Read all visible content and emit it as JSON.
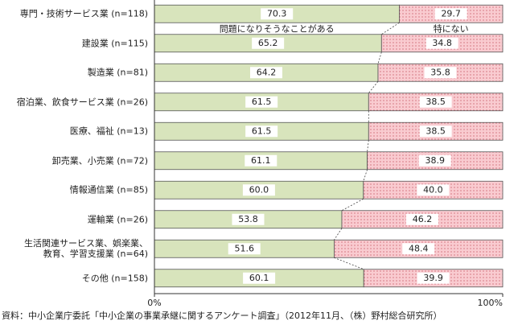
{
  "chart_data": {
    "type": "stacked-bar-horizontal",
    "categories": [
      "専門・技術サービス業 (n=118)",
      "建設業 (n=115)",
      "製造業 (n=81)",
      "宿泊業、飲食サービス業 (n=26)",
      "医療、福祉 (n=13)",
      "卸売業、小売業 (n=72)",
      "情報通信業 (n=85)",
      "運輸業 (n=26)",
      "生活関連サービス業、娯楽業、\n教育、学習支援業 (n=64)",
      "その他 (n=158)"
    ],
    "series": [
      {
        "name": "問題になりそうなことがある",
        "color": "#d8e4bc",
        "values": [
          70.3,
          65.2,
          64.2,
          61.5,
          61.5,
          61.1,
          60.0,
          53.8,
          51.6,
          60.1
        ],
        "value_labels": [
          "70.3",
          "65.2",
          "64.2",
          "61.5",
          "61.5",
          "61.1",
          "60.0",
          "53.8",
          "51.6",
          "60.1"
        ]
      },
      {
        "name": "特にない",
        "color": "#f9cbd0",
        "values": [
          29.7,
          34.8,
          35.8,
          38.5,
          38.5,
          38.9,
          40.0,
          46.2,
          48.4,
          39.9
        ],
        "value_labels": [
          "29.7",
          "34.8",
          "35.8",
          "38.5",
          "38.5",
          "38.9",
          "40.0",
          "46.2",
          "48.4",
          "39.9"
        ]
      }
    ],
    "xlim": [
      0,
      100
    ],
    "xticks": [
      {
        "value": 0,
        "label": "0%"
      },
      {
        "value": 100,
        "label": "100%"
      }
    ],
    "source": "資料：中小企業庁委託「中小企業の事業承継に関するアンケート調査」（2012年11月、（株）野村総合研究所）"
  }
}
